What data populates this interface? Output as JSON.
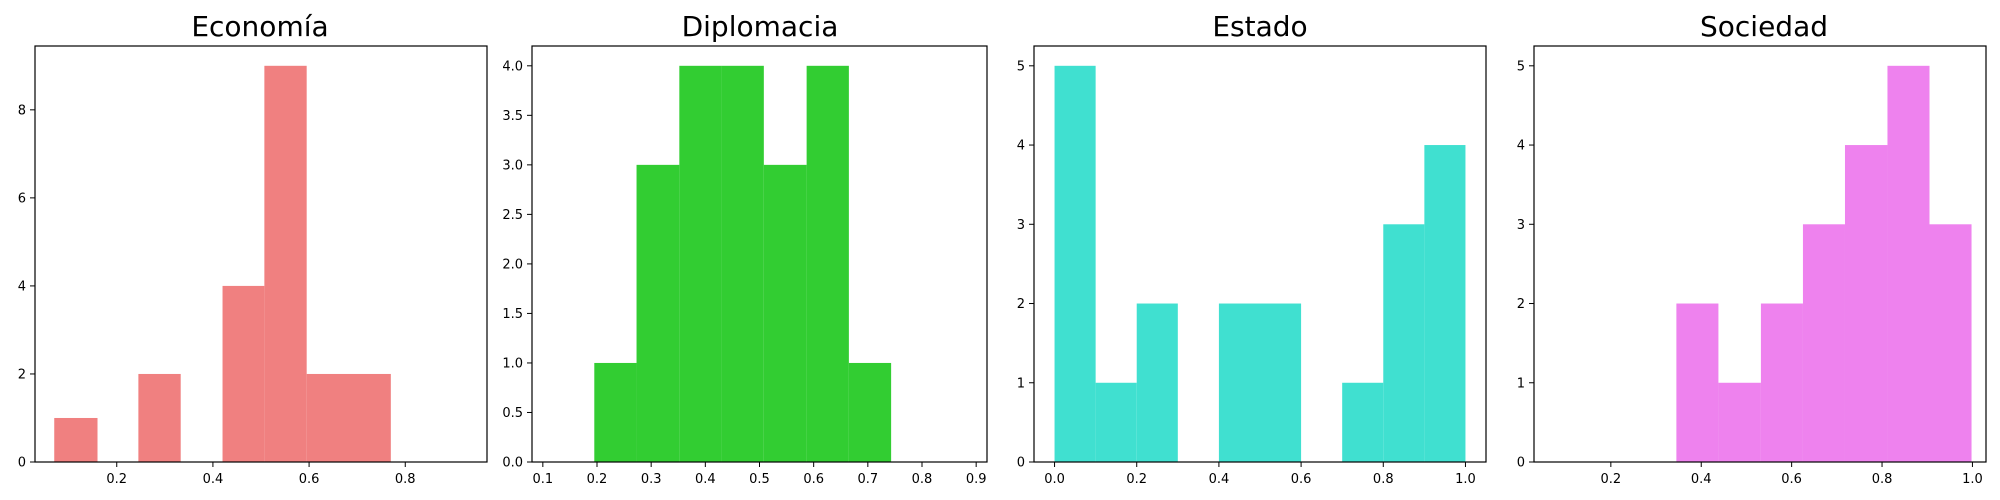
{
  "chart_data": [
    {
      "type": "bar",
      "title": "Economía",
      "color": "#F08080",
      "bins": [
        {
          "x0": 0.07,
          "x1": 0.16,
          "count": 1
        },
        {
          "x0": 0.16,
          "x1": 0.245,
          "count": 0
        },
        {
          "x0": 0.245,
          "x1": 0.333,
          "count": 2
        },
        {
          "x0": 0.333,
          "x1": 0.42,
          "count": 0
        },
        {
          "x0": 0.42,
          "x1": 0.507,
          "count": 4
        },
        {
          "x0": 0.507,
          "x1": 0.595,
          "count": 9
        },
        {
          "x0": 0.595,
          "x1": 0.683,
          "count": 2
        },
        {
          "x0": 0.683,
          "x1": 0.77,
          "count": 2
        }
      ],
      "xlim": [
        0.03,
        0.97
      ],
      "ylim": [
        0,
        9.45
      ],
      "xticks": [
        0.2,
        0.4,
        0.6,
        0.8
      ],
      "xtick_labels": [
        "0.2",
        "0.4",
        "0.6",
        "0.8"
      ],
      "yticks": [
        0,
        2,
        4,
        6,
        8
      ],
      "ytick_labels": [
        "0",
        "2",
        "4",
        "6",
        "8"
      ],
      "grid": false
    },
    {
      "type": "bar",
      "title": "Diplomacia",
      "color": "#32CD32",
      "bins": [
        {
          "x0": 0.195,
          "x1": 0.273,
          "count": 1
        },
        {
          "x0": 0.273,
          "x1": 0.352,
          "count": 3
        },
        {
          "x0": 0.352,
          "x1": 0.43,
          "count": 4
        },
        {
          "x0": 0.43,
          "x1": 0.508,
          "count": 4
        },
        {
          "x0": 0.508,
          "x1": 0.587,
          "count": 3
        },
        {
          "x0": 0.587,
          "x1": 0.665,
          "count": 4
        },
        {
          "x0": 0.665,
          "x1": 0.743,
          "count": 1
        }
      ],
      "xlim": [
        0.08,
        0.92
      ],
      "ylim": [
        0,
        4.2
      ],
      "xticks": [
        0.1,
        0.2,
        0.3,
        0.4,
        0.5,
        0.6,
        0.7,
        0.8,
        0.9
      ],
      "xtick_labels": [
        "0.1",
        "0.2",
        "0.3",
        "0.4",
        "0.5",
        "0.6",
        "0.7",
        "0.8",
        "0.9"
      ],
      "yticks": [
        0,
        0.5,
        1.0,
        1.5,
        2.0,
        2.5,
        3.0,
        3.5,
        4.0
      ],
      "ytick_labels": [
        "0.0",
        "0.5",
        "1.0",
        "1.5",
        "2.0",
        "2.5",
        "3.0",
        "3.5",
        "4.0"
      ],
      "grid": false
    },
    {
      "type": "bar",
      "title": "Estado",
      "color": "#40E0D0",
      "bins": [
        {
          "x0": 0.0,
          "x1": 0.1,
          "count": 5
        },
        {
          "x0": 0.1,
          "x1": 0.2,
          "count": 1
        },
        {
          "x0": 0.2,
          "x1": 0.3,
          "count": 2
        },
        {
          "x0": 0.3,
          "x1": 0.4,
          "count": 0
        },
        {
          "x0": 0.4,
          "x1": 0.5,
          "count": 2
        },
        {
          "x0": 0.5,
          "x1": 0.6,
          "count": 2
        },
        {
          "x0": 0.6,
          "x1": 0.7,
          "count": 0
        },
        {
          "x0": 0.7,
          "x1": 0.8,
          "count": 1
        },
        {
          "x0": 0.8,
          "x1": 0.9,
          "count": 3
        },
        {
          "x0": 0.9,
          "x1": 1.0,
          "count": 4
        }
      ],
      "xlim": [
        -0.05,
        1.05
      ],
      "ylim": [
        0,
        5.25
      ],
      "xticks": [
        0.0,
        0.2,
        0.4,
        0.6,
        0.8,
        1.0
      ],
      "xtick_labels": [
        "0.0",
        "0.2",
        "0.4",
        "0.6",
        "0.8",
        "1.0"
      ],
      "yticks": [
        0,
        1,
        2,
        3,
        4,
        5
      ],
      "ytick_labels": [
        "0",
        "1",
        "2",
        "3",
        "4",
        "5"
      ],
      "grid": false
    },
    {
      "type": "bar",
      "title": "Sociedad",
      "color": "#EE82EE",
      "bins": [
        {
          "x0": 0.345,
          "x1": 0.438,
          "count": 2
        },
        {
          "x0": 0.438,
          "x1": 0.532,
          "count": 1
        },
        {
          "x0": 0.532,
          "x1": 0.625,
          "count": 2
        },
        {
          "x0": 0.625,
          "x1": 0.718,
          "count": 3
        },
        {
          "x0": 0.718,
          "x1": 0.812,
          "count": 4
        },
        {
          "x0": 0.812,
          "x1": 0.905,
          "count": 5
        },
        {
          "x0": 0.905,
          "x1": 0.998,
          "count": 3
        }
      ],
      "xlim": [
        0.03,
        1.03
      ],
      "ylim": [
        0,
        5.25
      ],
      "xticks": [
        0.2,
        0.4,
        0.6,
        0.8,
        1.0
      ],
      "xtick_labels": [
        "0.2",
        "0.4",
        "0.6",
        "0.8",
        "1.0"
      ],
      "yticks": [
        0,
        1,
        2,
        3,
        4,
        5
      ],
      "ytick_labels": [
        "0",
        "1",
        "2",
        "3",
        "4",
        "5"
      ],
      "grid": false
    }
  ]
}
